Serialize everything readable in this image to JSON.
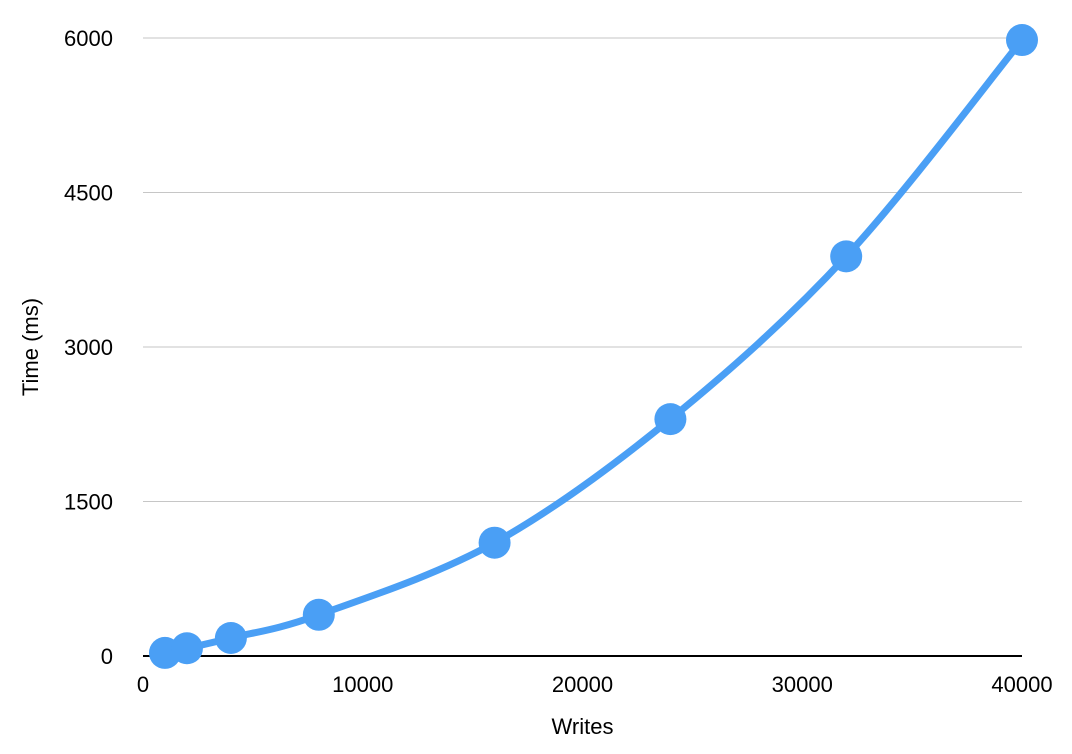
{
  "chart_data": {
    "type": "line",
    "title": "",
    "xlabel": "Writes",
    "ylabel": "Time (ms)",
    "xlim": [
      0,
      40000
    ],
    "ylim": [
      0,
      6000
    ],
    "x_ticks": [
      0,
      10000,
      20000,
      30000,
      40000
    ],
    "y_ticks": [
      0,
      1500,
      3000,
      4500,
      6000
    ],
    "grid": "horizontal",
    "smooth": true,
    "markers": true,
    "series": [
      {
        "color": "#4a9ff5",
        "x": [
          1000,
          2000,
          4000,
          8000,
          16000,
          24000,
          32000,
          40000
        ],
        "y": [
          30,
          75,
          175,
          400,
          1100,
          2300,
          3880,
          5980
        ]
      }
    ]
  }
}
